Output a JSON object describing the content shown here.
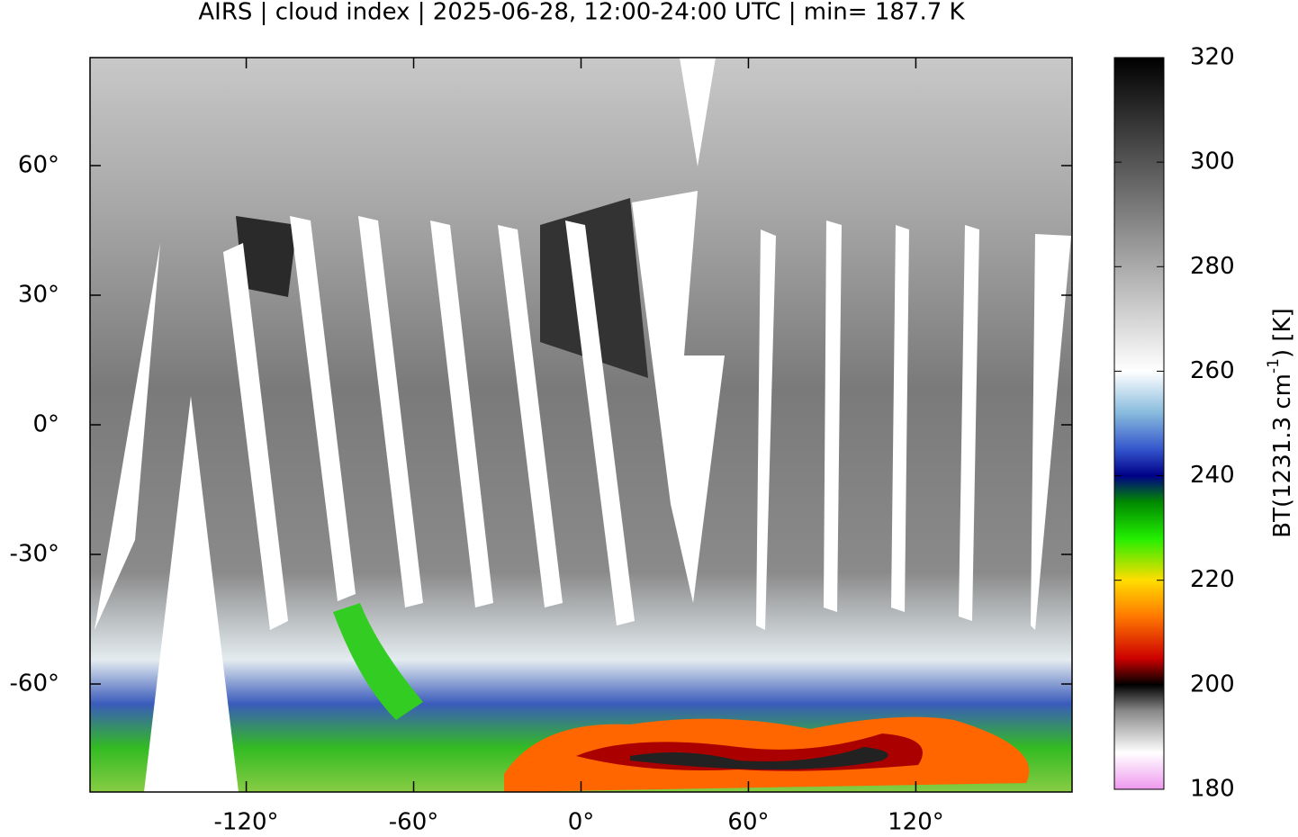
{
  "chart_data": {
    "type": "map",
    "title": "AIRS | cloud index | 2025-06-28, 12:00-24:00 UTC | min= 187.7 K",
    "xlim": [
      -176,
      176
    ],
    "ylim": [
      -85,
      85
    ],
    "xticks": [
      {
        "value": -120,
        "label": "-120°"
      },
      {
        "value": -60,
        "label": "-60°"
      },
      {
        "value": 0,
        "label": "0°"
      },
      {
        "value": 60,
        "label": "60°"
      },
      {
        "value": 120,
        "label": "120°"
      }
    ],
    "yticks": [
      {
        "value": 60,
        "label": "60°"
      },
      {
        "value": 30,
        "label": "30°"
      },
      {
        "value": 0,
        "label": "0°"
      },
      {
        "value": -30,
        "label": "-30°"
      },
      {
        "value": -60,
        "label": "-60°"
      }
    ],
    "colorbar": {
      "label": [
        "BT(1231.3 cm",
        "-1",
        ") [K]"
      ],
      "lim": [
        180,
        320
      ],
      "ticks": [
        180,
        200,
        220,
        240,
        260,
        280,
        300,
        320
      ],
      "colormap": [
        {
          "value": 180,
          "color": "#ee99ee"
        },
        {
          "value": 187,
          "color": "#ffffff"
        },
        {
          "value": 195,
          "color": "#888888"
        },
        {
          "value": 200,
          "color": "#000000"
        },
        {
          "value": 205,
          "color": "#cc0000"
        },
        {
          "value": 213,
          "color": "#ff7700"
        },
        {
          "value": 220,
          "color": "#ffdd00"
        },
        {
          "value": 228,
          "color": "#22ee00"
        },
        {
          "value": 235,
          "color": "#008800"
        },
        {
          "value": 240,
          "color": "#000088"
        },
        {
          "value": 245,
          "color": "#3355cc"
        },
        {
          "value": 252,
          "color": "#88bbdd"
        },
        {
          "value": 260,
          "color": "#ffffff"
        },
        {
          "value": 280,
          "color": "#aaaaaa"
        },
        {
          "value": 300,
          "color": "#555555"
        },
        {
          "value": 320,
          "color": "#000000"
        }
      ]
    }
  }
}
